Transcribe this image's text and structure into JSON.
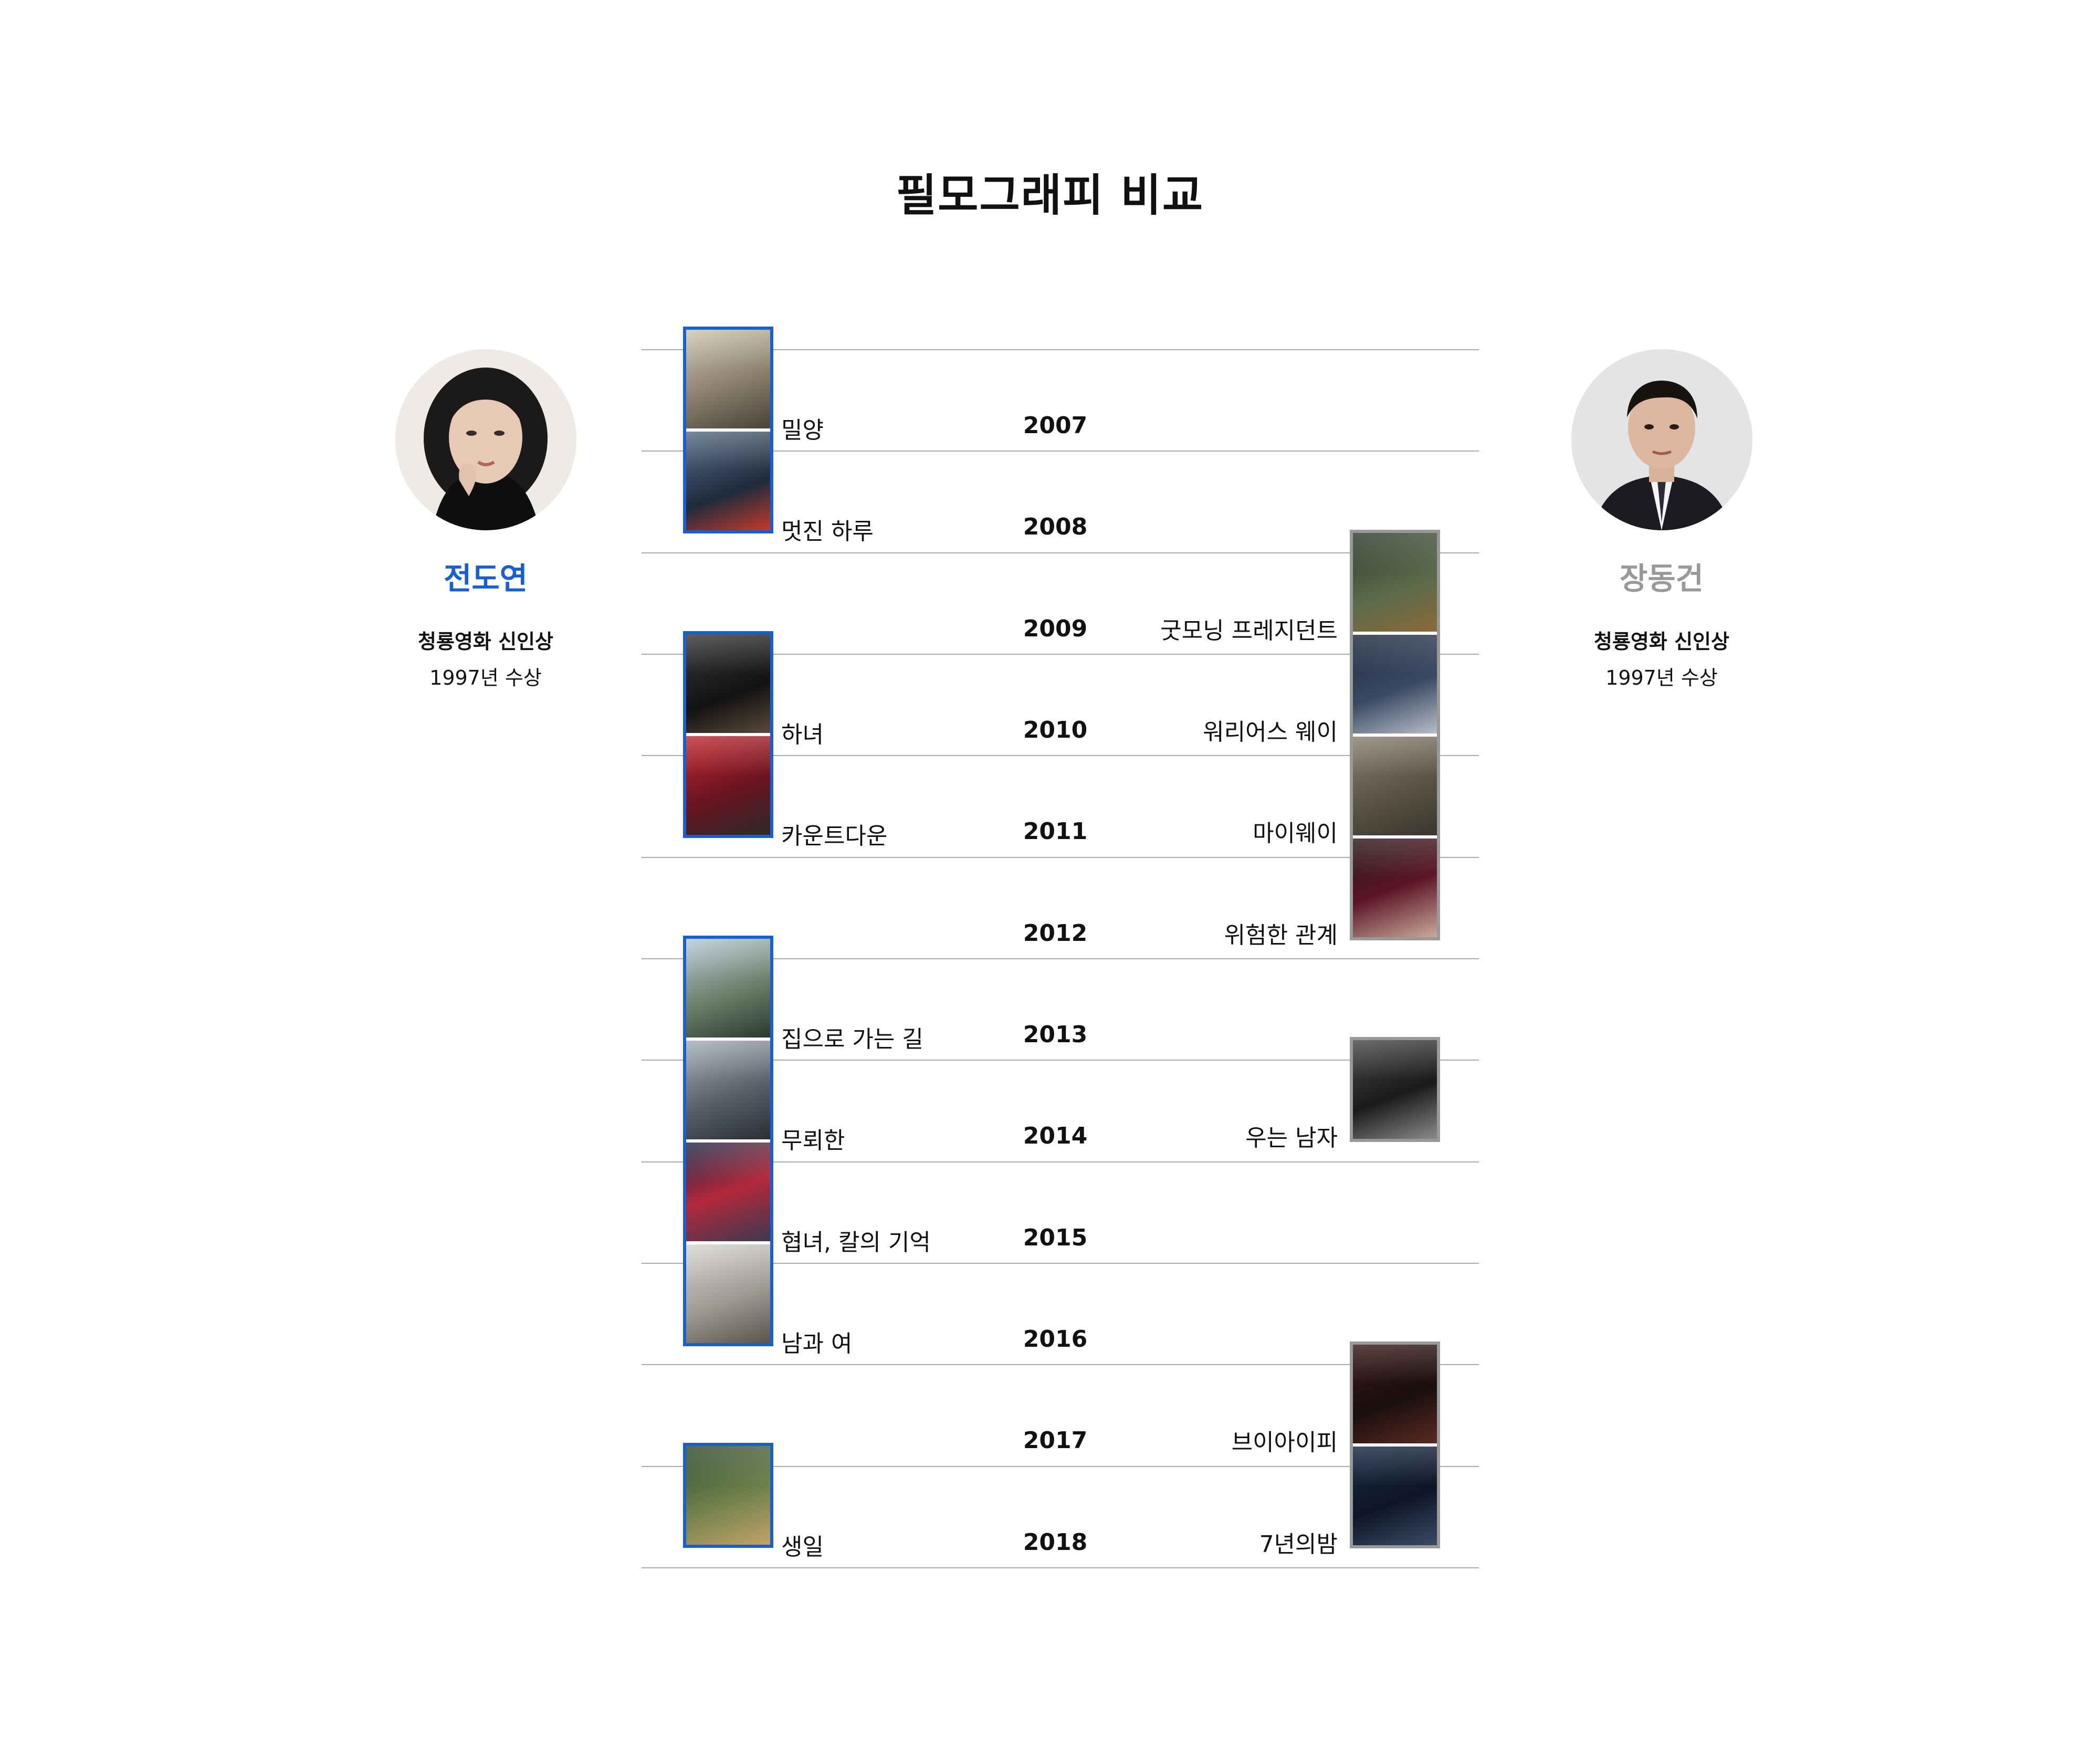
{
  "title": "필모그래피 비교",
  "left_actor": {
    "name": "전도연",
    "award": "청룡영화 신인상",
    "award_year": "1997년 수상",
    "color": "#1a5fd0"
  },
  "right_actor": {
    "name": "장동건",
    "award": "청룡영화 신인상",
    "award_year": "1997년 수상",
    "color": "#999999"
  },
  "timeline": [
    {
      "year": "2007",
      "left": "밀양",
      "right": ""
    },
    {
      "year": "2008",
      "left": "멋진 하루",
      "right": ""
    },
    {
      "year": "2009",
      "left": "",
      "right": "굿모닝 프레지던트"
    },
    {
      "year": "2010",
      "left": "하녀",
      "right": "워리어스 웨이"
    },
    {
      "year": "2011",
      "left": "카운트다운",
      "right": "마이웨이"
    },
    {
      "year": "2012",
      "left": "",
      "right": "위험한 관계"
    },
    {
      "year": "2013",
      "left": "집으로 가는 길",
      "right": ""
    },
    {
      "year": "2014",
      "left": "무뢰한",
      "right": "우는 남자"
    },
    {
      "year": "2015",
      "left": "협녀, 칼의 기억",
      "right": ""
    },
    {
      "year": "2016",
      "left": "남과 여",
      "right": ""
    },
    {
      "year": "2017",
      "left": "",
      "right": "브이아이피"
    },
    {
      "year": "2018",
      "left": "생일",
      "right": "7년의밤"
    }
  ]
}
